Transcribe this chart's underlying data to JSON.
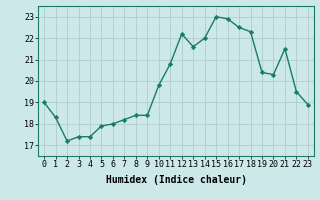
{
  "x": [
    0,
    1,
    2,
    3,
    4,
    5,
    6,
    7,
    8,
    9,
    10,
    11,
    12,
    13,
    14,
    15,
    16,
    17,
    18,
    19,
    20,
    21,
    22,
    23
  ],
  "y": [
    19.0,
    18.3,
    17.2,
    17.4,
    17.4,
    17.9,
    18.0,
    18.2,
    18.4,
    18.4,
    19.8,
    20.8,
    22.2,
    21.6,
    22.0,
    23.0,
    22.9,
    22.5,
    22.3,
    20.4,
    20.3,
    21.5,
    19.5,
    18.9
  ],
  "line_color": "#1a7a6e",
  "marker": "D",
  "markersize": 2.2,
  "linewidth": 1.0,
  "background_color": "#cce8e8",
  "grid_color": "#b0cccc",
  "xlabel": "Humidex (Indice chaleur)",
  "xlabel_fontsize": 7,
  "tick_fontsize": 6,
  "xlim": [
    -0.5,
    23.5
  ],
  "ylim": [
    16.5,
    23.5
  ],
  "yticks": [
    17,
    18,
    19,
    20,
    21,
    22,
    23
  ],
  "xticks": [
    0,
    1,
    2,
    3,
    4,
    5,
    6,
    7,
    8,
    9,
    10,
    11,
    12,
    13,
    14,
    15,
    16,
    17,
    18,
    19,
    20,
    21,
    22,
    23
  ]
}
